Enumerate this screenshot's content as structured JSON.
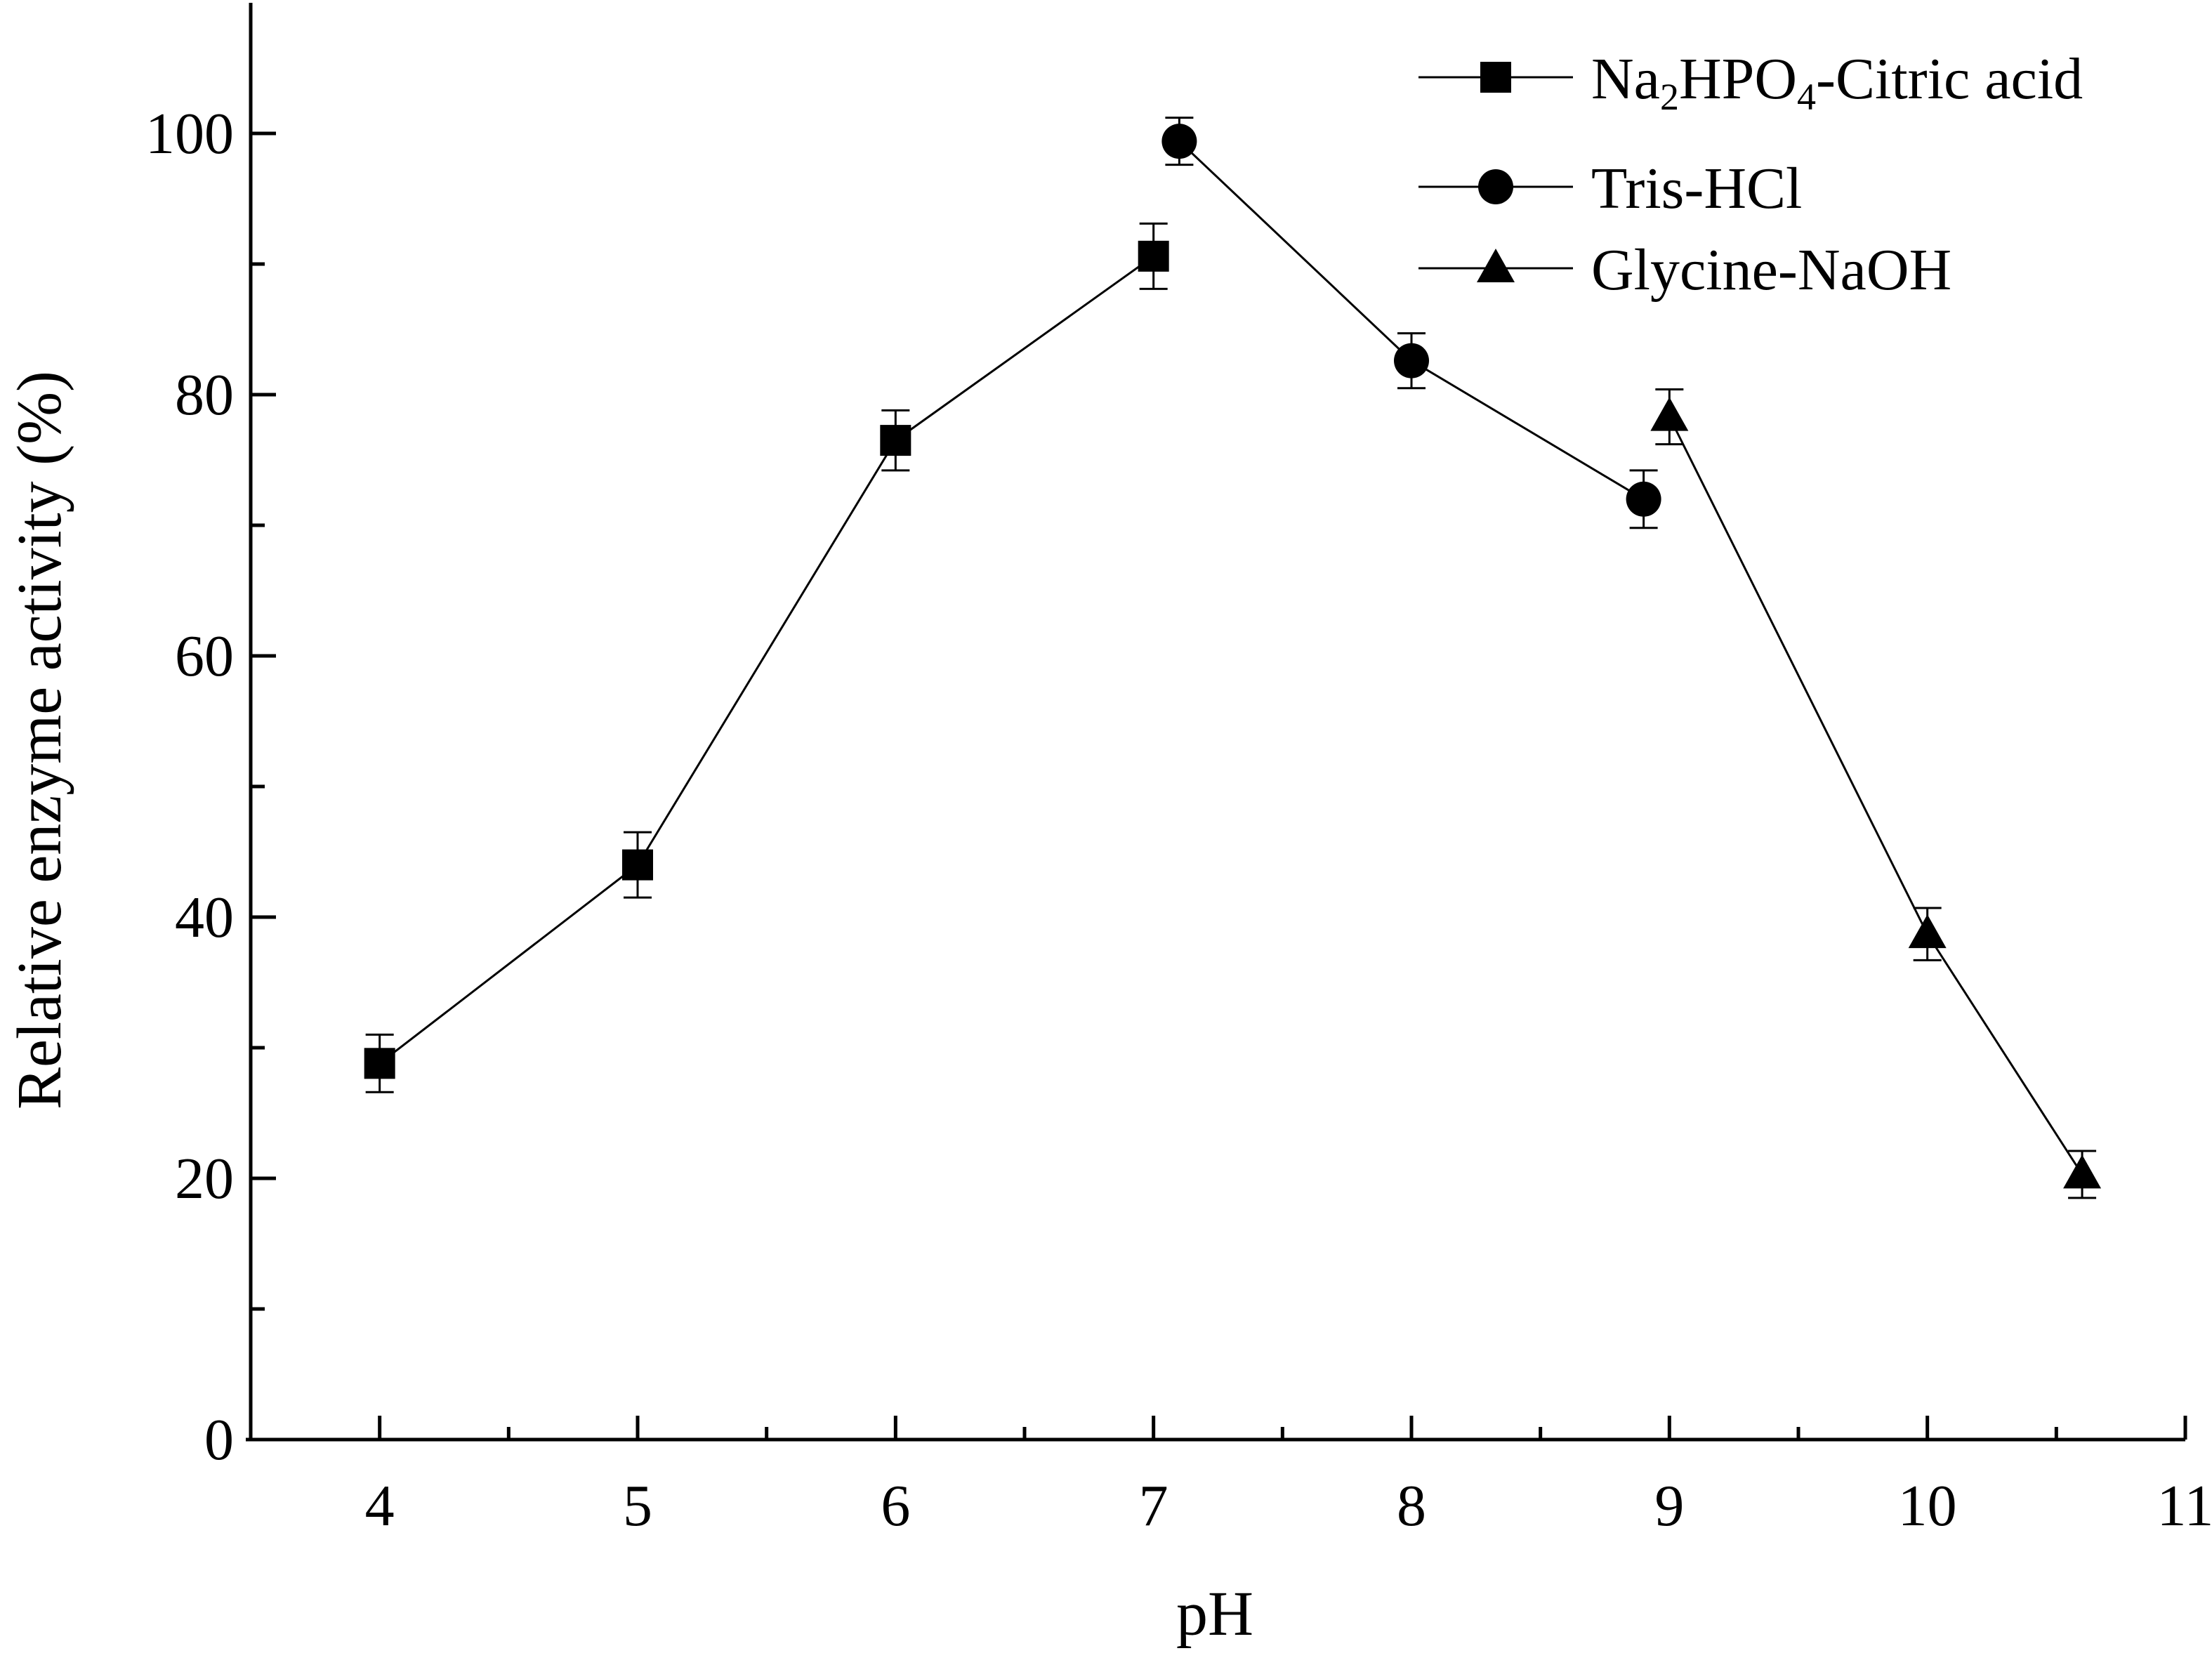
{
  "chart_data": {
    "type": "line",
    "title": "",
    "xlabel": "pH",
    "ylabel": "Relative enzyme activity (%)",
    "xlim": [
      3.5,
      11
    ],
    "ylim": [
      0,
      110
    ],
    "x_ticks": [
      "4",
      "5",
      "6",
      "7",
      "8",
      "9",
      "10",
      "11"
    ],
    "y_ticks": [
      "0",
      "20",
      "40",
      "60",
      "80",
      "100"
    ],
    "grid": false,
    "legend_position": "top-right",
    "series": [
      {
        "name": "Na2HPO4-Citric acid",
        "legend": {
          "main": "Na",
          "sub1": "2",
          "mid": "HPO",
          "sub2": "4",
          "tail": "-Citric acid"
        },
        "marker": "square",
        "x": [
          4,
          5,
          6,
          7
        ],
        "y": [
          28.8,
          44.0,
          76.5,
          90.6
        ],
        "error": [
          2.2,
          2.5,
          2.3,
          2.5
        ]
      },
      {
        "name": "Tris-HCl",
        "marker": "circle",
        "x": [
          7.1,
          8,
          8.9
        ],
        "y": [
          99.4,
          82.6,
          72.0
        ],
        "error": [
          1.8,
          2.1,
          2.2
        ]
      },
      {
        "name": "Glycine-NaOH",
        "marker": "triangle",
        "x": [
          9,
          10,
          10.6
        ],
        "y": [
          78.3,
          38.7,
          20.3
        ],
        "error": [
          2.1,
          2.0,
          1.8
        ]
      }
    ]
  }
}
